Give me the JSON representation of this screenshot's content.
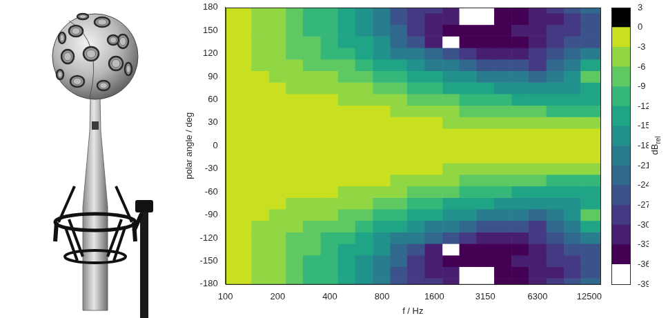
{
  "chart_data": {
    "type": "heatmap",
    "xlabel": "f / Hz",
    "ylabel": "polar angle / deg",
    "log": "x",
    "grid": false,
    "xlim": [
      100,
      14500
    ],
    "xticks": [
      100,
      200,
      400,
      800,
      1600,
      3150,
      6300,
      12500
    ],
    "ylim": [
      -180,
      180
    ],
    "yticks": [
      -180,
      -150,
      -120,
      -90,
      -60,
      -30,
      0,
      30,
      60,
      90,
      120,
      150,
      180
    ],
    "x": [
      100,
      125,
      160,
      200,
      250,
      315,
      400,
      500,
      630,
      800,
      1000,
      1250,
      1600,
      2000,
      2500,
      3150,
      4000,
      5000,
      6300,
      8000,
      10000,
      12500
    ],
    "y": [
      -180,
      -165,
      -150,
      -135,
      -120,
      -105,
      -90,
      -75,
      -60,
      -45,
      -30,
      -15,
      0,
      15,
      30,
      45,
      60,
      75,
      90,
      105,
      120,
      135,
      150,
      165,
      180
    ],
    "cells": [
      [
        -2,
        -2,
        -4,
        -5,
        -7,
        -9,
        -11,
        -14,
        -17,
        -20,
        -24,
        -27,
        -29,
        -31,
        -37,
        -37,
        -34,
        -33,
        -30,
        -28,
        -25,
        -22
      ],
      [
        -2,
        -2,
        -4,
        -5,
        -7,
        -9,
        -11,
        -14,
        -17,
        -20,
        -24,
        -28,
        -30,
        -31,
        -36,
        -38,
        -35,
        -34,
        -32,
        -30,
        -27,
        -24
      ],
      [
        -2,
        -2,
        -4,
        -5,
        -7,
        -9,
        -11,
        -13,
        -16,
        -19,
        -23,
        -27,
        -32,
        -33,
        -33,
        -35,
        -33,
        -32,
        -31,
        -29,
        -28,
        -26
      ],
      [
        -2,
        -2,
        -4,
        -5,
        -7,
        -8,
        -10,
        -12,
        -14,
        -17,
        -21,
        -24,
        -30,
        -38,
        -34,
        -33,
        -34,
        -33,
        -30,
        -27,
        -26,
        -25
      ],
      [
        -2,
        -2,
        -4,
        -5,
        -6,
        -7,
        -9,
        -10,
        -12,
        -15,
        -18,
        -20,
        -23,
        -26,
        -28,
        -30,
        -31,
        -31,
        -28,
        -24,
        -22,
        -20
      ],
      [
        -2,
        -2,
        -3,
        -4,
        -5,
        -6,
        -7,
        -8,
        -10,
        -12,
        -14,
        -16,
        -18,
        -20,
        -22,
        -24,
        -25,
        -26,
        -27,
        -22,
        -18,
        -12
      ],
      [
        -2,
        -2,
        -2,
        -3,
        -4,
        -4,
        -5,
        -6,
        -7,
        -9,
        -11,
        -12,
        -14,
        -15,
        -17,
        -18,
        -20,
        -20,
        -21,
        -20,
        -16,
        -8
      ],
      [
        -1,
        -2,
        -2,
        -2,
        -3,
        -3,
        -3,
        -4,
        -5,
        -6,
        -8,
        -9,
        -10,
        -12,
        -13,
        -14,
        -15,
        -16,
        -16,
        -17,
        -16,
        -13
      ],
      [
        -1,
        -1,
        -2,
        -2,
        -2,
        -2,
        -2,
        -3,
        -3,
        -4,
        -5,
        -6,
        -7,
        -8,
        -9,
        -10,
        -11,
        -12,
        -12,
        -13,
        -14,
        -14
      ],
      [
        -1,
        -1,
        -1,
        -1,
        -1,
        -1,
        -1,
        -2,
        -2,
        -2,
        -3,
        -4,
        -4,
        -5,
        -6,
        -7,
        -7,
        -8,
        -8,
        -9,
        -10,
        -11
      ],
      [
        0,
        0,
        -1,
        -1,
        -1,
        -1,
        -1,
        -1,
        -1,
        -1,
        -1,
        -2,
        -2,
        -3,
        -3,
        -3,
        -4,
        -4,
        -4,
        -4,
        -5,
        -5
      ],
      [
        0,
        0,
        0,
        0,
        0,
        0,
        0,
        0,
        0,
        0,
        0,
        0,
        0,
        -1,
        -1,
        -1,
        -1,
        -1,
        -1,
        -1,
        -1,
        -2
      ],
      [
        0,
        0,
        0,
        0,
        0,
        0,
        0,
        0,
        0,
        0,
        0,
        0,
        0,
        0,
        0,
        0,
        0,
        0,
        0,
        0,
        0,
        0
      ],
      [
        0,
        0,
        0,
        0,
        0,
        0,
        0,
        0,
        0,
        0,
        0,
        0,
        0,
        -1,
        -1,
        -1,
        -1,
        -1,
        -1,
        -1,
        -1,
        -2
      ],
      [
        0,
        0,
        -1,
        -1,
        -1,
        -1,
        -1,
        -1,
        -1,
        -1,
        -1,
        -2,
        -2,
        -3,
        -3,
        -3,
        -4,
        -4,
        -4,
        -4,
        -5,
        -5
      ],
      [
        -1,
        -1,
        -1,
        -1,
        -1,
        -1,
        -1,
        -2,
        -2,
        -2,
        -3,
        -4,
        -4,
        -5,
        -6,
        -7,
        -7,
        -8,
        -8,
        -9,
        -10,
        -11
      ],
      [
        -1,
        -1,
        -2,
        -2,
        -2,
        -2,
        -2,
        -3,
        -3,
        -4,
        -5,
        -6,
        -7,
        -8,
        -9,
        -10,
        -11,
        -12,
        -12,
        -13,
        -14,
        -14
      ],
      [
        -1,
        -2,
        -2,
        -2,
        -3,
        -3,
        -3,
        -4,
        -5,
        -6,
        -8,
        -9,
        -10,
        -12,
        -13,
        -14,
        -15,
        -16,
        -16,
        -17,
        -16,
        -13
      ],
      [
        -2,
        -2,
        -2,
        -3,
        -4,
        -4,
        -5,
        -6,
        -7,
        -9,
        -11,
        -12,
        -14,
        -15,
        -17,
        -18,
        -20,
        -20,
        -21,
        -20,
        -16,
        -8
      ],
      [
        -2,
        -2,
        -3,
        -4,
        -5,
        -6,
        -7,
        -8,
        -10,
        -12,
        -14,
        -16,
        -18,
        -20,
        -22,
        -24,
        -25,
        -26,
        -27,
        -22,
        -18,
        -12
      ],
      [
        -2,
        -2,
        -4,
        -5,
        -6,
        -7,
        -9,
        -10,
        -12,
        -15,
        -18,
        -20,
        -23,
        -26,
        -28,
        -30,
        -31,
        -31,
        -28,
        -24,
        -22,
        -20
      ],
      [
        -2,
        -2,
        -4,
        -5,
        -7,
        -8,
        -10,
        -12,
        -14,
        -17,
        -21,
        -24,
        -30,
        -38,
        -34,
        -33,
        -34,
        -33,
        -30,
        -27,
        -26,
        -25
      ],
      [
        -2,
        -2,
        -4,
        -5,
        -7,
        -9,
        -11,
        -13,
        -16,
        -19,
        -23,
        -27,
        -32,
        -33,
        -33,
        -35,
        -33,
        -32,
        -31,
        -29,
        -28,
        -26
      ],
      [
        -2,
        -2,
        -4,
        -5,
        -7,
        -9,
        -11,
        -14,
        -17,
        -20,
        -24,
        -28,
        -30,
        -31,
        -36,
        -38,
        -35,
        -34,
        -32,
        -30,
        -27,
        -24
      ],
      [
        -2,
        -2,
        -4,
        -5,
        -7,
        -9,
        -11,
        -14,
        -17,
        -20,
        -24,
        -27,
        -29,
        -31,
        -37,
        -37,
        -34,
        -33,
        -30,
        -28,
        -25,
        -22
      ]
    ],
    "colorbar": {
      "label": "dB",
      "label_subscript": "rel",
      "range": [
        -39,
        3
      ],
      "ticks": [
        -39,
        -36,
        -33,
        -30,
        -27,
        -24,
        -21,
        -18,
        -15,
        -12,
        -9,
        -6,
        -3,
        0,
        3
      ],
      "colors": [
        "#ffffff",
        "#440154",
        "#481f70",
        "#443983",
        "#3b528b",
        "#31688e",
        "#287c8e",
        "#21918c",
        "#20a486",
        "#35b779",
        "#5ec962",
        "#90d743",
        "#c8e020",
        "#000000"
      ]
    }
  }
}
